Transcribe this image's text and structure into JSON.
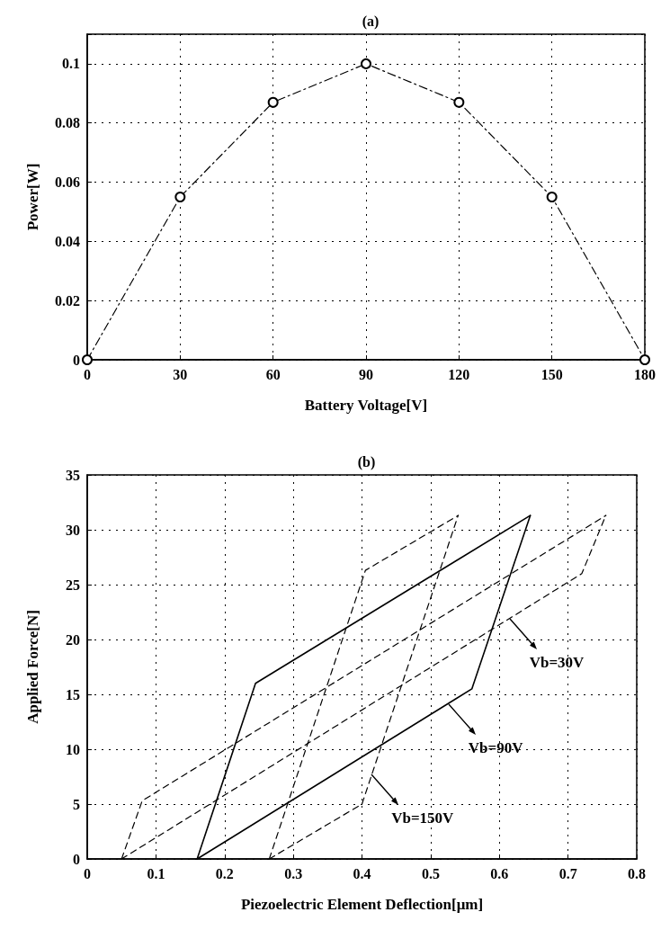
{
  "chart_data": [
    {
      "type": "line",
      "title": "(a)",
      "xlabel": "Battery Voltage[V]",
      "ylabel": "Power[W]",
      "x": [
        0,
        30,
        60,
        90,
        120,
        150,
        180
      ],
      "series": [
        {
          "color": "#000000",
          "values": [
            0,
            0.055,
            0.087,
            0.1,
            0.087,
            0.055,
            0
          ]
        }
      ],
      "xlim": [
        0,
        180
      ],
      "xticks": [
        0,
        30,
        60,
        90,
        120,
        150,
        180
      ],
      "ylim": [
        0,
        0.11
      ],
      "yticks": [
        0,
        0.02,
        0.04,
        0.06,
        0.08,
        0.1
      ],
      "grid": true,
      "marker": "circle",
      "line_style": "dashed"
    },
    {
      "type": "line",
      "title": "(b)",
      "xlabel": "Piezoelectric Element Deflection[μm]",
      "ylabel": "Applied Force[N]",
      "series": [
        {
          "color": "#000000",
          "line_style": "dashed",
          "x": [
            0.05,
            0.08,
            0.755
          ],
          "values": [
            0,
            5.3,
            31.3
          ]
        },
        {
          "color": "#000000",
          "line_style": "dashed",
          "x": [
            0.05,
            0.72,
            0.755
          ],
          "values": [
            0,
            26,
            31.3
          ]
        },
        {
          "color": "#000000",
          "line_style": "solid",
          "x": [
            0.16,
            0.245,
            0.645
          ],
          "values": [
            0,
            16,
            31.3
          ]
        },
        {
          "color": "#000000",
          "line_style": "solid",
          "x": [
            0.16,
            0.56,
            0.645
          ],
          "values": [
            0,
            15.5,
            31.3
          ]
        },
        {
          "color": "#000000",
          "line_style": "dashed",
          "x": [
            0.265,
            0.405,
            0.54
          ],
          "values": [
            0,
            26.3,
            31.3
          ]
        },
        {
          "color": "#000000",
          "line_style": "dashed",
          "x": [
            0.265,
            0.4,
            0.54
          ],
          "values": [
            0,
            5,
            31.3
          ]
        }
      ],
      "xlim": [
        0,
        0.8
      ],
      "xticks": [
        0,
        0.1,
        0.2,
        0.3,
        0.4,
        0.5,
        0.6,
        0.7,
        0.8
      ],
      "ylim": [
        0,
        35
      ],
      "yticks": [
        0,
        5,
        10,
        15,
        20,
        25,
        30,
        35
      ],
      "grid": true,
      "marker": "none",
      "annotations": [
        {
          "text": "Vb=30V",
          "x": 0.615,
          "y": 21.9
        },
        {
          "text": "Vb=90V",
          "x": 0.526,
          "y": 14.1
        },
        {
          "text": "Vb=150V",
          "x": 0.414,
          "y": 7.7
        }
      ]
    }
  ]
}
